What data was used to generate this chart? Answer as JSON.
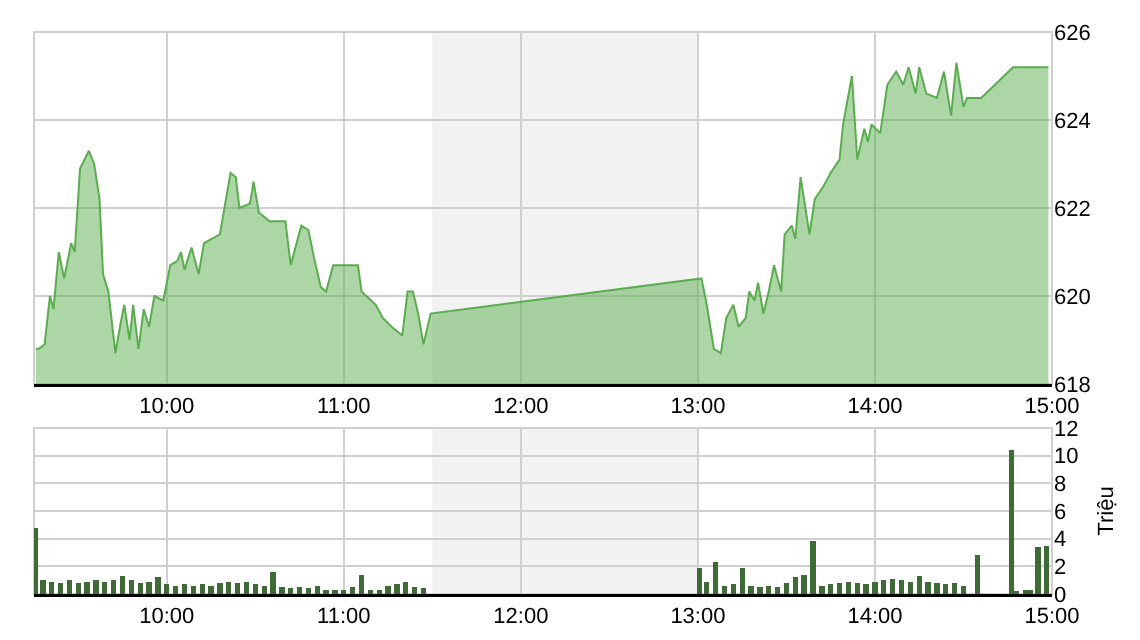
{
  "chart_data": [
    {
      "type": "area",
      "legend": false,
      "grid": true,
      "series": [
        {
          "color": "#5aad4e",
          "x": [
            9.26,
            9.277,
            9.31,
            9.34,
            9.36,
            9.39,
            9.42,
            9.46,
            9.48,
            9.51,
            9.56,
            9.59,
            9.62,
            9.64,
            9.67,
            9.71,
            9.74,
            9.76,
            9.79,
            9.81,
            9.84,
            9.87,
            9.9,
            9.93,
            9.98,
            10.02,
            10.06,
            10.08,
            10.1,
            10.14,
            10.18,
            10.21,
            10.3,
            10.36,
            10.39,
            10.41,
            10.47,
            10.49,
            10.52,
            10.58,
            10.67,
            10.7,
            10.76,
            10.8,
            10.83,
            10.87,
            10.9,
            10.94,
            11.01,
            11.08,
            11.1,
            11.18,
            11.22,
            11.27,
            11.33,
            11.36,
            11.39,
            11.42,
            11.45,
            11.49,
            13.02,
            13.05,
            13.09,
            13.13,
            13.16,
            13.2,
            13.23,
            13.27,
            13.29,
            13.32,
            13.34,
            13.37,
            13.4,
            13.43,
            13.47,
            13.49,
            13.53,
            13.55,
            13.58,
            13.63,
            13.66,
            13.71,
            13.75,
            13.8,
            13.82,
            13.87,
            13.9,
            13.94,
            13.96,
            13.98,
            14.03,
            14.07,
            14.12,
            14.16,
            14.19,
            14.23,
            14.25,
            14.29,
            14.35,
            14.39,
            14.43,
            14.46,
            14.5,
            14.52,
            14.6,
            14.78,
            14.98
          ],
          "values": [
            618.8,
            618.8,
            618.9,
            620.0,
            619.7,
            621.0,
            620.4,
            621.2,
            621.0,
            622.9,
            623.3,
            623.0,
            622.2,
            620.5,
            620.1,
            618.7,
            619.4,
            619.8,
            619.0,
            619.8,
            618.8,
            619.7,
            619.3,
            620.0,
            619.9,
            620.7,
            620.8,
            621.0,
            620.6,
            621.1,
            620.5,
            621.2,
            621.4,
            622.8,
            622.7,
            622.0,
            622.1,
            622.6,
            621.9,
            621.7,
            621.7,
            620.7,
            621.6,
            621.5,
            620.9,
            620.2,
            620.1,
            620.7,
            620.7,
            620.7,
            620.1,
            619.8,
            619.5,
            619.3,
            619.1,
            620.1,
            620.1,
            619.6,
            618.9,
            619.6,
            620.4,
            619.8,
            618.8,
            618.7,
            619.5,
            619.8,
            619.3,
            619.5,
            620.1,
            619.9,
            620.3,
            619.6,
            620.1,
            620.7,
            620.1,
            621.4,
            621.6,
            621.3,
            622.7,
            621.4,
            622.2,
            622.5,
            622.8,
            623.1,
            623.9,
            625.0,
            623.1,
            623.8,
            623.5,
            623.9,
            623.7,
            624.8,
            625.1,
            624.8,
            625.2,
            624.6,
            625.2,
            624.6,
            624.5,
            625.1,
            624.1,
            625.3,
            624.3,
            624.5,
            624.5,
            625.2,
            625.2
          ]
        }
      ],
      "xlim": [
        9.25,
        15
      ],
      "xticks": [
        {
          "value": 10,
          "label": "10:00"
        },
        {
          "value": 11,
          "label": "11:00"
        },
        {
          "value": 12,
          "label": "12:00"
        },
        {
          "value": 13,
          "label": "13:00"
        },
        {
          "value": 14,
          "label": "14:00"
        },
        {
          "value": 15,
          "label": "15:00"
        }
      ],
      "ylim": [
        618,
        626
      ],
      "yticks": [
        618,
        620,
        622,
        624,
        626
      ],
      "bands": [
        {
          "axis": "x",
          "from": 11.5,
          "to": 13,
          "color": "#f2f2f2"
        }
      ]
    },
    {
      "type": "bar",
      "legend": false,
      "grid": true,
      "ylabel": "Triệu",
      "series": [
        {
          "color": "#3e6b35",
          "x": [
            9.26,
            9.3,
            9.35,
            9.4,
            9.45,
            9.5,
            9.55,
            9.6,
            9.65,
            9.7,
            9.75,
            9.8,
            9.85,
            9.9,
            9.95,
            10,
            10.05,
            10.1,
            10.15,
            10.2,
            10.25,
            10.3,
            10.35,
            10.4,
            10.45,
            10.5,
            10.55,
            10.6,
            10.65,
            10.7,
            10.75,
            10.8,
            10.85,
            10.9,
            10.95,
            11,
            11.05,
            11.1,
            11.15,
            11.2,
            11.25,
            11.3,
            11.35,
            11.4,
            11.45,
            13.01,
            13.05,
            13.1,
            13.15,
            13.2,
            13.25,
            13.3,
            13.35,
            13.4,
            13.45,
            13.5,
            13.55,
            13.6,
            13.65,
            13.7,
            13.75,
            13.8,
            13.85,
            13.9,
            13.95,
            14,
            14.05,
            14.1,
            14.15,
            14.2,
            14.25,
            14.3,
            14.35,
            14.4,
            14.45,
            14.5,
            14.58,
            14.77,
            14.8,
            14.85,
            14.88,
            14.92,
            14.97
          ],
          "values": [
            4.8,
            1.0,
            0.9,
            0.8,
            1.0,
            0.8,
            0.9,
            1.0,
            0.9,
            1.0,
            1.3,
            1.0,
            0.8,
            0.9,
            1.2,
            0.7,
            0.6,
            0.7,
            0.6,
            0.7,
            0.6,
            0.8,
            0.9,
            0.8,
            0.9,
            0.7,
            0.6,
            1.6,
            0.5,
            0.4,
            0.5,
            0.4,
            0.6,
            0.3,
            0.3,
            0.3,
            0.5,
            1.4,
            0.3,
            0.3,
            0.6,
            0.7,
            0.9,
            0.5,
            0.4,
            1.9,
            0.9,
            2.3,
            0.6,
            0.7,
            1.9,
            0.6,
            0.5,
            0.6,
            0.5,
            0.8,
            1.2,
            1.4,
            3.8,
            0.6,
            0.7,
            0.8,
            0.9,
            0.8,
            0.7,
            0.9,
            1.0,
            1.1,
            1.0,
            0.9,
            1.3,
            0.9,
            0.8,
            0.7,
            0.8,
            0.6,
            2.8,
            10.4,
            0.2,
            0.3,
            0.3,
            3.4,
            3.5
          ]
        }
      ],
      "xlim": [
        9.25,
        15
      ],
      "xticks": [
        {
          "value": 10,
          "label": "10:00"
        },
        {
          "value": 11,
          "label": "11:00"
        },
        {
          "value": 12,
          "label": "12:00"
        },
        {
          "value": 13,
          "label": "13:00"
        },
        {
          "value": 14,
          "label": "14:00"
        },
        {
          "value": 15,
          "label": "15:00"
        }
      ],
      "ylim": [
        0,
        12
      ],
      "yticks": [
        0,
        2,
        4,
        6,
        8,
        10,
        12
      ],
      "bands": [
        {
          "axis": "x",
          "from": 11.5,
          "to": 13,
          "color": "#f2f2f2"
        }
      ]
    }
  ]
}
